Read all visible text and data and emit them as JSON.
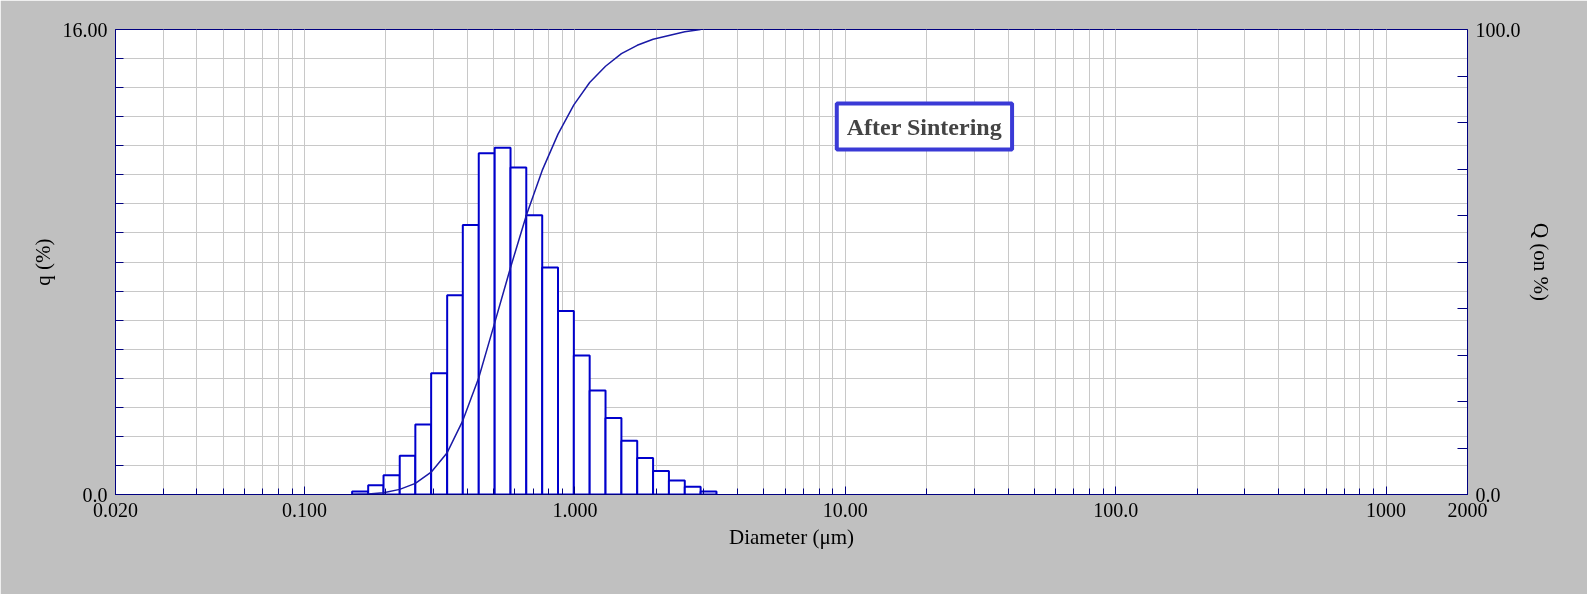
{
  "chart_data": {
    "type": "histogram",
    "xlabel": "Diameter (μm)",
    "ylabel": "q (%)",
    "y2label": "Q (on %)",
    "annotations": [
      "After Sintering"
    ],
    "bins": [
      0.15,
      0.172,
      0.196,
      0.225,
      0.257,
      0.294,
      0.337,
      0.385,
      0.441,
      0.505,
      0.578,
      0.661,
      0.757,
      0.866,
      0.991,
      1.134,
      1.298,
      1.486,
      1.7,
      1.946,
      2.227,
      2.549,
      2.917,
      3.339
    ],
    "values": [
      0.1,
      0.32,
      0.66,
      1.33,
      2.41,
      4.17,
      6.86,
      9.27,
      11.74,
      11.93,
      11.25,
      9.61,
      7.81,
      6.31,
      4.78,
      3.58,
      2.63,
      1.85,
      1.26,
      0.81,
      0.48,
      0.27,
      0.1
    ],
    "color": "#0000cc",
    "series": [
      {
        "type": "line",
        "axis": "y2",
        "color": "#1a1aa6",
        "x": [
          0.15,
          0.172,
          0.196,
          0.225,
          0.257,
          0.294,
          0.337,
          0.385,
          0.441,
          0.505,
          0.578,
          0.661,
          0.757,
          0.866,
          0.991,
          1.134,
          1.298,
          1.486,
          1.7,
          1.946,
          2.227,
          2.549,
          2.917
        ],
        "values": [
          0,
          0.1,
          0.4,
          1.1,
          2.4,
          4.8,
          9.0,
          15.9,
          25.1,
          36.9,
          48.8,
          60.0,
          69.7,
          77.5,
          83.8,
          88.6,
          92.1,
          94.8,
          96.6,
          97.9,
          98.7,
          99.5,
          100
        ]
      }
    ],
    "log": "x",
    "xlim": [
      0.02,
      2000
    ],
    "ylim": [
      0,
      16
    ],
    "y2lim": [
      0,
      100
    ],
    "xticks": [
      {
        "value": 0.02,
        "label": "0.020"
      },
      {
        "value": 0.1,
        "label": "0.100"
      },
      {
        "value": 1,
        "label": "1.000"
      },
      {
        "value": 10,
        "label": "10.00"
      },
      {
        "value": 100,
        "label": "100.0"
      },
      {
        "value": 1000,
        "label": "1000"
      },
      {
        "value": 2000,
        "label": "2000"
      }
    ],
    "yticks": [
      {
        "value": 0,
        "label": "0.0"
      },
      {
        "value": 1,
        "label": null
      },
      {
        "value": 2,
        "label": null
      },
      {
        "value": 3,
        "label": null
      },
      {
        "value": 4,
        "label": null
      },
      {
        "value": 5,
        "label": null
      },
      {
        "value": 6,
        "label": null
      },
      {
        "value": 7,
        "label": null
      },
      {
        "value": 8,
        "label": null
      },
      {
        "value": 9,
        "label": null
      },
      {
        "value": 10,
        "label": null
      },
      {
        "value": 11,
        "label": null
      },
      {
        "value": 12,
        "label": null
      },
      {
        "value": 13,
        "label": null
      },
      {
        "value": 14,
        "label": null
      },
      {
        "value": 15,
        "label": null
      },
      {
        "value": 16,
        "label": "16.00"
      }
    ],
    "y2ticks": [
      {
        "value": 0,
        "label": "0.0"
      },
      {
        "value": 10,
        "label": null
      },
      {
        "value": 20,
        "label": null
      },
      {
        "value": 30,
        "label": null
      },
      {
        "value": 40,
        "label": null
      },
      {
        "value": 50,
        "label": null
      },
      {
        "value": 60,
        "label": null
      },
      {
        "value": 70,
        "label": null
      },
      {
        "value": 80,
        "label": null
      },
      {
        "value": 90,
        "label": null
      },
      {
        "value": 100,
        "label": "100.0"
      }
    ],
    "grid": true
  }
}
